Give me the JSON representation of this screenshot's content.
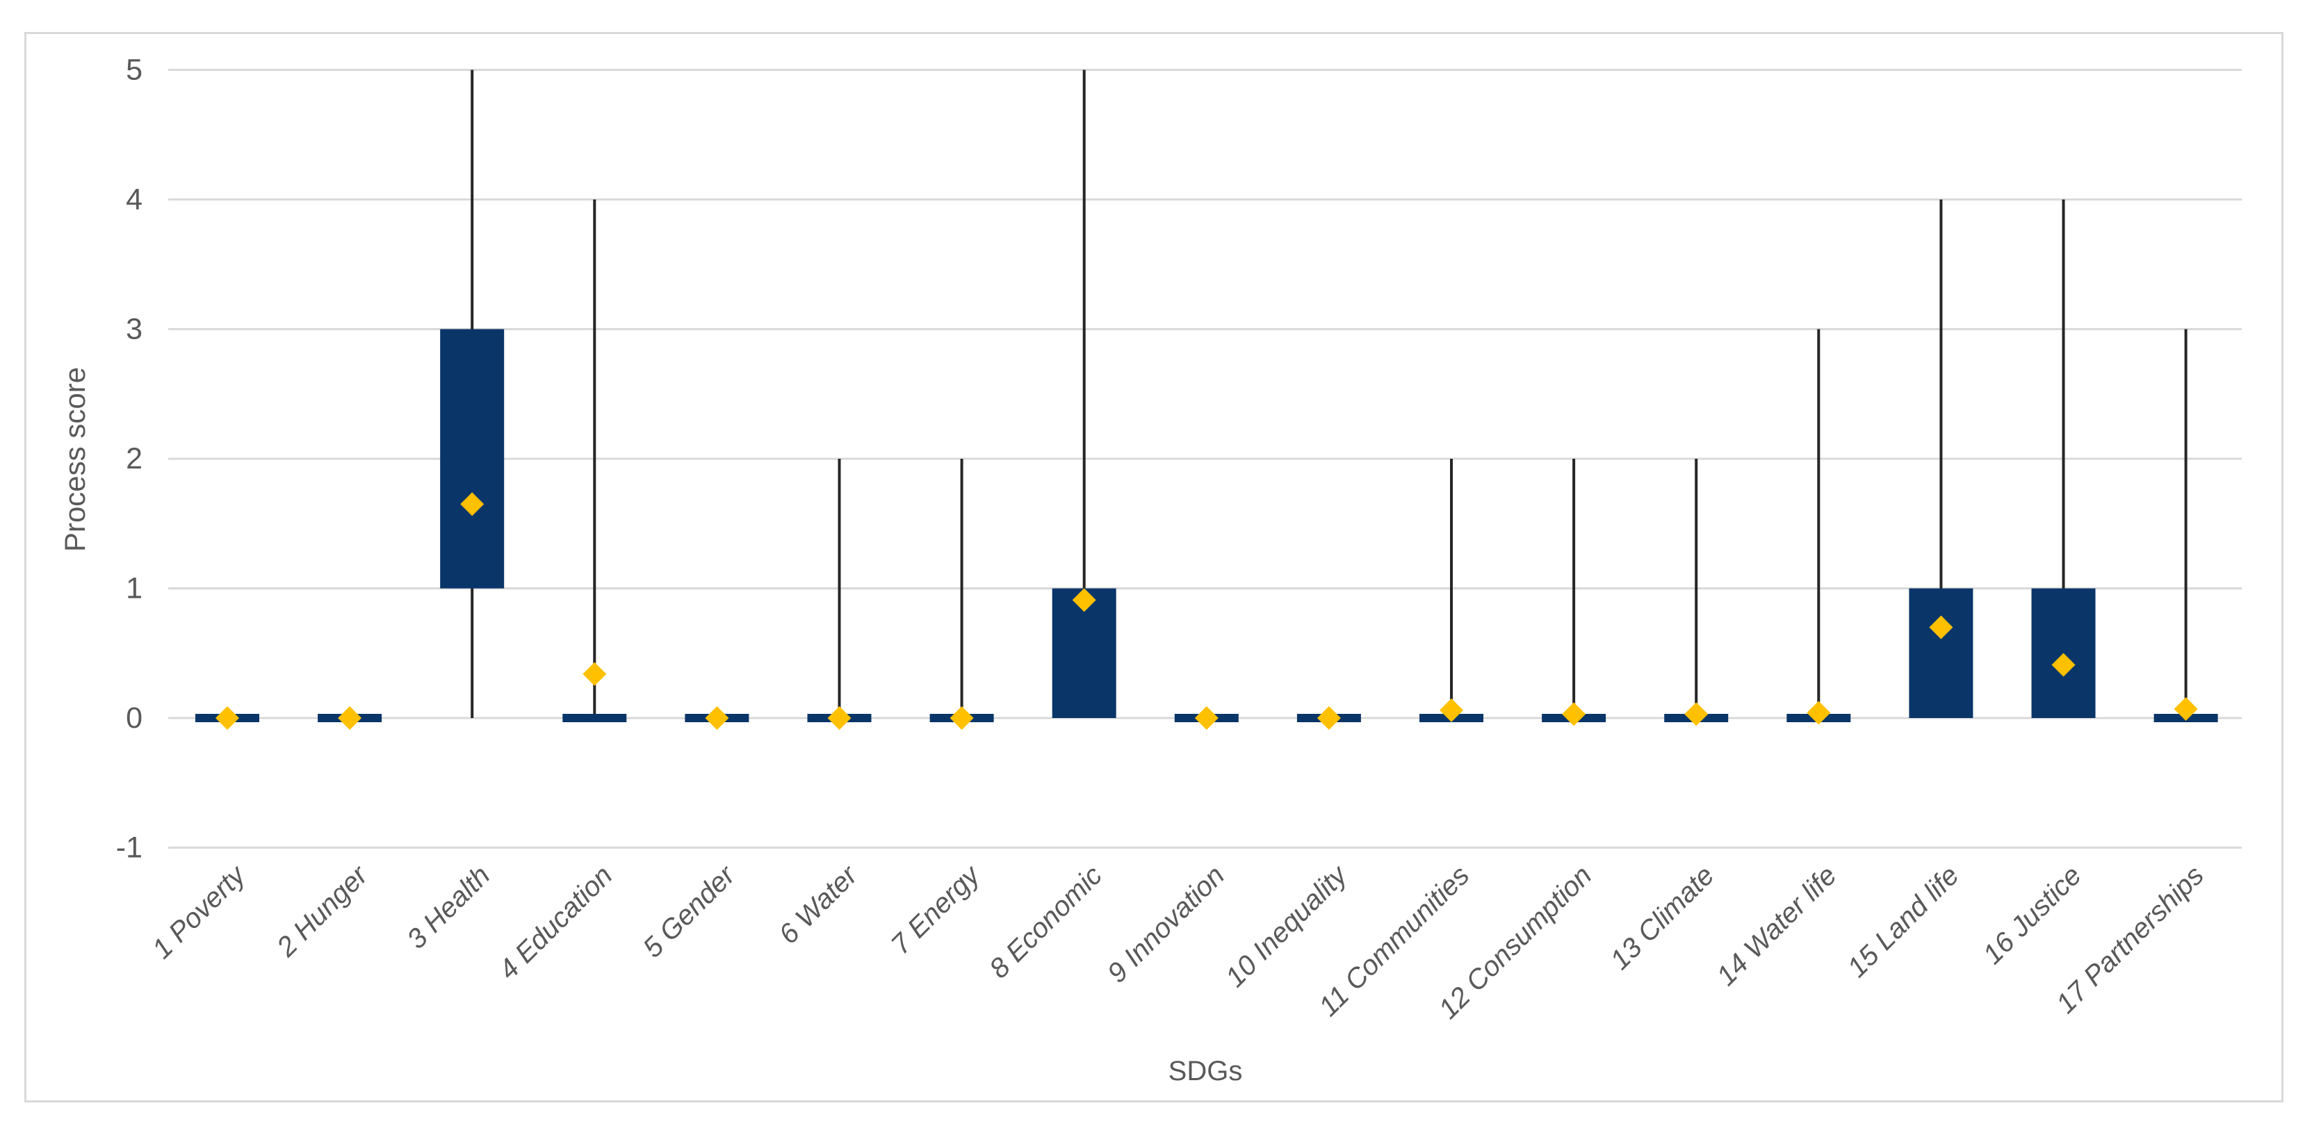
{
  "figure": {
    "background": "#ffffff",
    "border_color": "#D9D9D9"
  },
  "chart_data": {
    "type": "boxplot",
    "title": "",
    "xlabel": "SDGs",
    "ylabel": "Process score",
    "ylim": [
      -1,
      5
    ],
    "yticks": [
      -1,
      0,
      1,
      2,
      3,
      4,
      5
    ],
    "grid": "horizontal",
    "legend": "none",
    "mean_marker_shape": "diamond",
    "colors": {
      "box_fill": "#0A3568",
      "whisker": "#262626",
      "mean_marker": "#FFC000",
      "gridline": "#D9D9D9",
      "text": "#595959"
    },
    "categories": [
      "1 Poverty",
      "2 Hunger",
      "3 Health",
      "4 Education",
      "5 Gender",
      "6 Water",
      "7 Energy",
      "8 Economic",
      "9 Innovation",
      "10 Inequality",
      "11 Communities",
      "12 Consumption",
      "13 Climate",
      "14 Water life",
      "15 Land life",
      "16 Justice",
      "17 Partnerships"
    ],
    "boxes": [
      {
        "category": "1 Poverty",
        "min": 0,
        "q1": 0,
        "q3": 0,
        "max": 0,
        "mean": 0.0
      },
      {
        "category": "2 Hunger",
        "min": 0,
        "q1": 0,
        "q3": 0,
        "max": 0,
        "mean": 0.0
      },
      {
        "category": "3 Health",
        "min": 0,
        "q1": 1,
        "q3": 3,
        "max": 5,
        "mean": 1.65
      },
      {
        "category": "4 Education",
        "min": 0,
        "q1": 0,
        "q3": 0,
        "max": 4,
        "mean": 0.34
      },
      {
        "category": "5 Gender",
        "min": 0,
        "q1": 0,
        "q3": 0,
        "max": 0,
        "mean": 0.0
      },
      {
        "category": "6 Water",
        "min": 0,
        "q1": 0,
        "q3": 0,
        "max": 2,
        "mean": 0.0
      },
      {
        "category": "7 Energy",
        "min": 0,
        "q1": 0,
        "q3": 0,
        "max": 2,
        "mean": 0.0
      },
      {
        "category": "8 Economic",
        "min": 0,
        "q1": 0,
        "q3": 1,
        "max": 5,
        "mean": 0.91
      },
      {
        "category": "9 Innovation",
        "min": 0,
        "q1": 0,
        "q3": 0,
        "max": 0,
        "mean": 0.0
      },
      {
        "category": "10 Inequality",
        "min": 0,
        "q1": 0,
        "q3": 0,
        "max": 0,
        "mean": 0.0
      },
      {
        "category": "11 Communities",
        "min": 0,
        "q1": 0,
        "q3": 0,
        "max": 2,
        "mean": 0.06
      },
      {
        "category": "12 Consumption",
        "min": 0,
        "q1": 0,
        "q3": 0,
        "max": 2,
        "mean": 0.03
      },
      {
        "category": "13 Climate",
        "min": 0,
        "q1": 0,
        "q3": 0,
        "max": 2,
        "mean": 0.03
      },
      {
        "category": "14 Water life",
        "min": 0,
        "q1": 0,
        "q3": 0,
        "max": 3,
        "mean": 0.04
      },
      {
        "category": "15 Land life",
        "min": 0,
        "q1": 0,
        "q3": 1,
        "max": 4,
        "mean": 0.7
      },
      {
        "category": "16 Justice",
        "min": 0,
        "q1": 0,
        "q3": 1,
        "max": 4,
        "mean": 0.41
      },
      {
        "category": "17 Partnerships",
        "min": 0,
        "q1": 0,
        "q3": 0,
        "max": 3,
        "mean": 0.07
      }
    ]
  }
}
